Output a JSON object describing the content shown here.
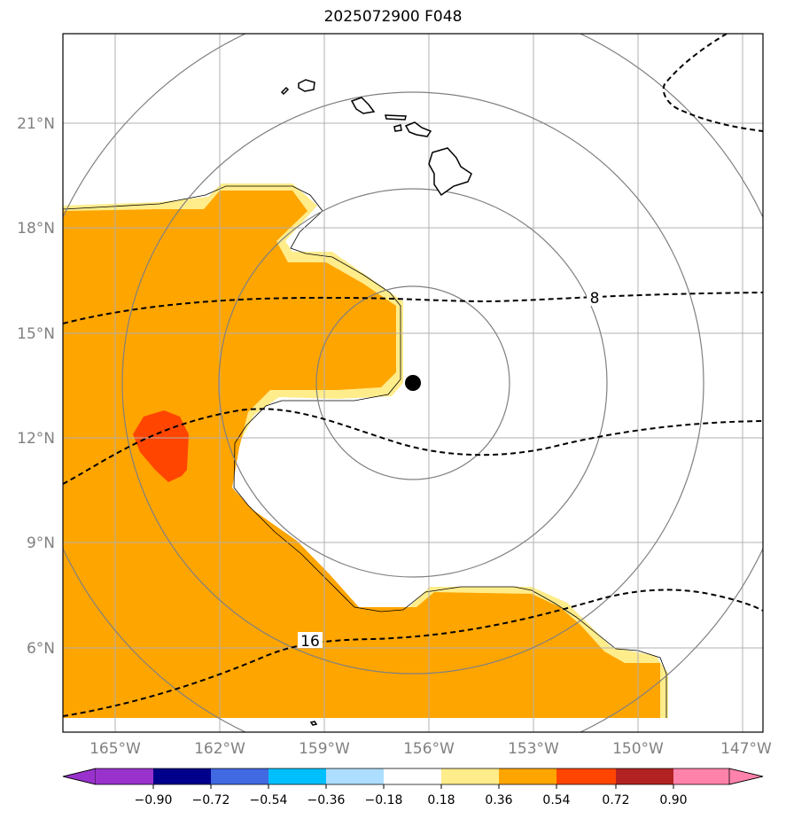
{
  "title": "2025072900 F048",
  "map": {
    "lon_labels": [
      "165°W",
      "162°W",
      "159°W",
      "156°W",
      "153°W",
      "150°W",
      "147°W"
    ],
    "lat_labels": [
      "21°N",
      "18°N",
      "15°N",
      "12°N",
      "9°N",
      "6°N"
    ],
    "contour_labels": [
      "8",
      "16"
    ],
    "center_marker": "storm-center"
  },
  "colorbar": {
    "tick_labels": [
      "−0.90",
      "−0.72",
      "−0.54",
      "−0.36",
      "−0.18",
      "0.18",
      "0.36",
      "0.54",
      "0.72",
      "0.90"
    ],
    "colors": [
      "#9932CC",
      "#00008B",
      "#4169E1",
      "#00BFFF",
      "#ADDEFF",
      "#FFFFFF",
      "#FFEC8B",
      "#FFA500",
      "#FF4500",
      "#B22222",
      "#FF82AB"
    ]
  }
}
